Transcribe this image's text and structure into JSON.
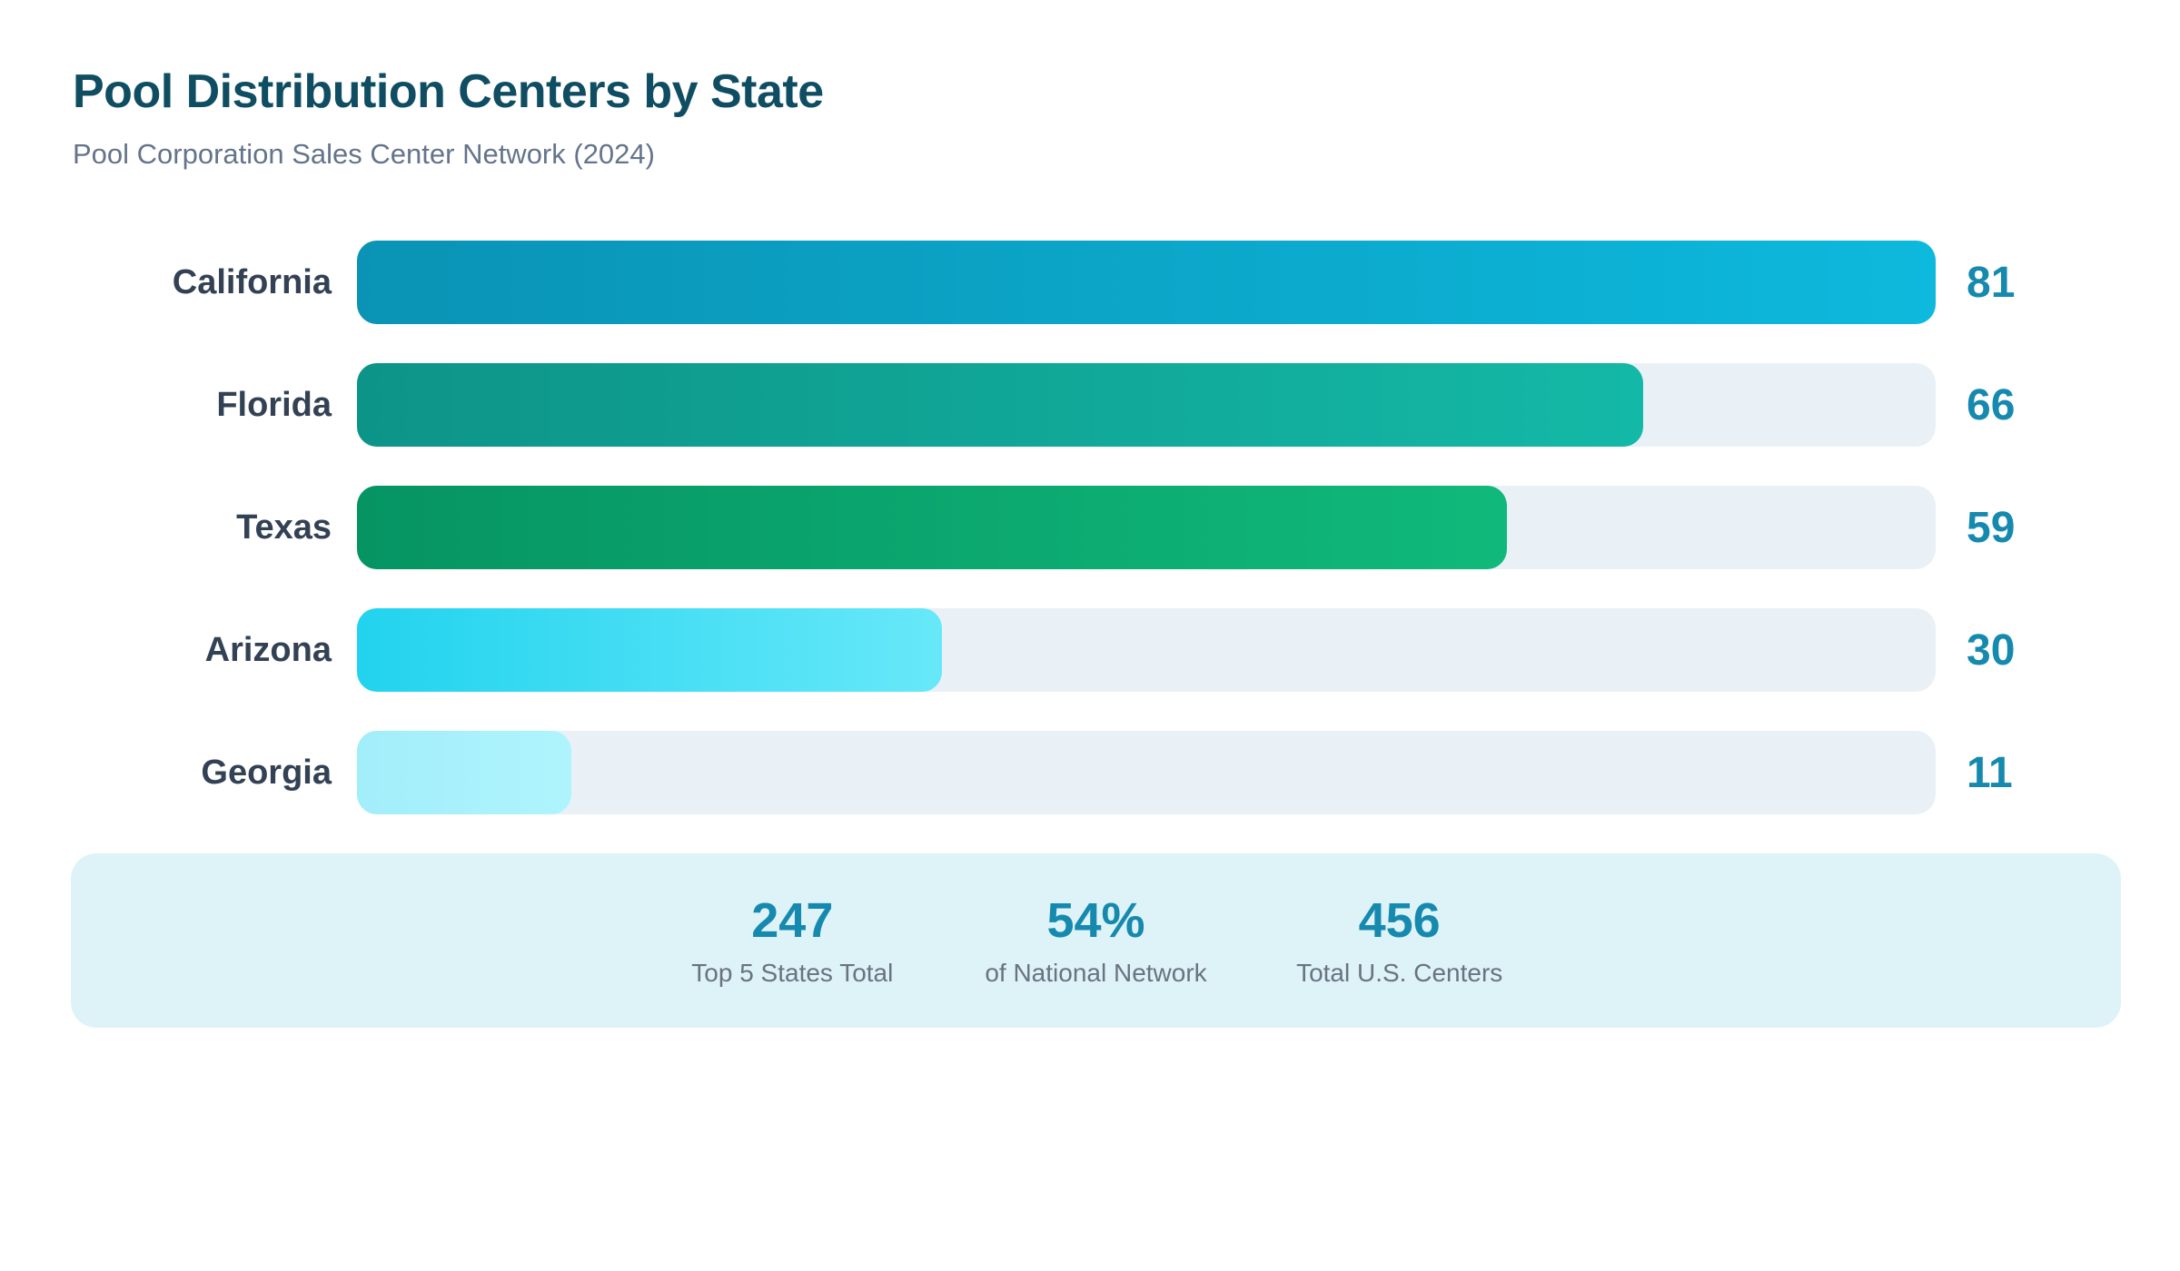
{
  "header": {
    "title": "Pool Distribution Centers by State",
    "subtitle": "Pool Corporation Sales Center Network (2024)"
  },
  "chart_data": {
    "type": "bar",
    "orientation": "horizontal",
    "title": "Pool Distribution Centers by State",
    "subtitle": "Pool Corporation Sales Center Network (2024)",
    "categories": [
      "California",
      "Florida",
      "Texas",
      "Arizona",
      "Georgia"
    ],
    "values": [
      81,
      66,
      59,
      30,
      11
    ],
    "xlim": [
      0,
      81
    ],
    "grid": false,
    "legend": false,
    "value_labels_shown": true,
    "bars": [
      {
        "state": "California",
        "value": 81,
        "gradient": [
          "#0a93b5",
          "#0db9dc"
        ]
      },
      {
        "state": "Florida",
        "value": 66,
        "gradient": [
          "#0d9488",
          "#14b8a6"
        ]
      },
      {
        "state": "Texas",
        "value": 59,
        "gradient": [
          "#069463",
          "#10b97b"
        ]
      },
      {
        "state": "Arizona",
        "value": 30,
        "gradient": [
          "#22d3ee",
          "#67e8f9"
        ]
      },
      {
        "state": "Georgia",
        "value": 11,
        "gradient": [
          "#a2eefa",
          "#aff4fd"
        ]
      }
    ],
    "track_color": "#e9f1f7",
    "category_label_color": "#334155",
    "value_label_color": "#1689ae"
  },
  "summary": {
    "background_color": "#ddf3f8",
    "stats": [
      {
        "value": "247",
        "label": "Top 5 States Total"
      },
      {
        "value": "54%",
        "label": "of National Network"
      },
      {
        "value": "456",
        "label": "Total U.S. Centers"
      }
    ]
  },
  "colors": {
    "title": "#0f4d62",
    "subtitle": "#64748b",
    "accent": "#1689ae",
    "background": "#ffffff"
  }
}
